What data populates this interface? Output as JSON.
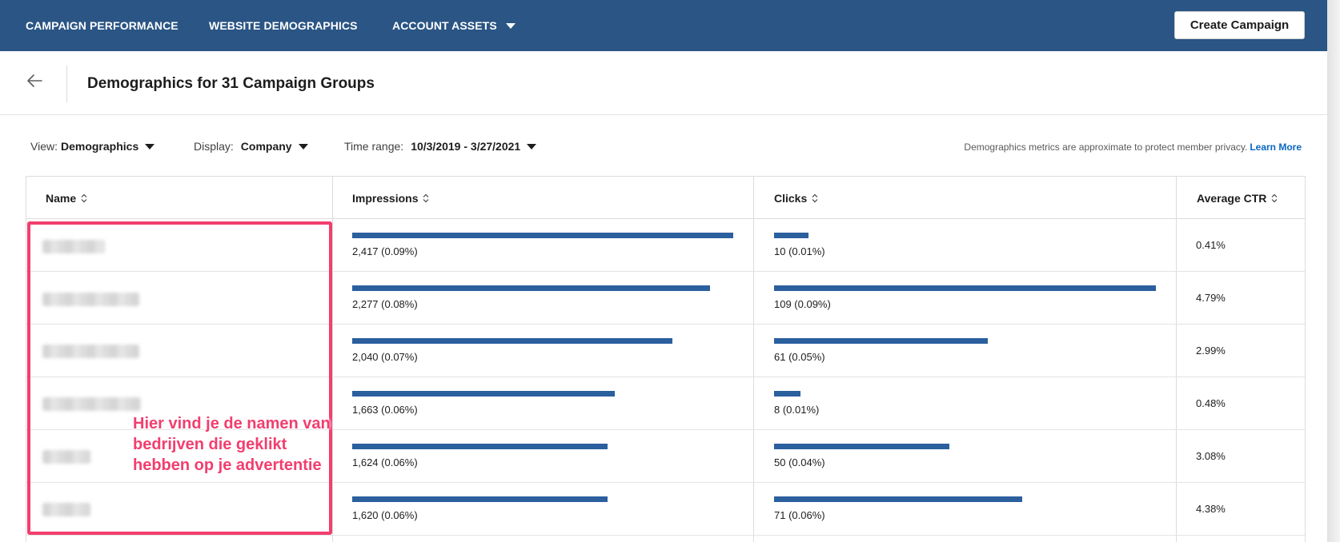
{
  "topnav": {
    "items": [
      {
        "label": "CAMPAIGN PERFORMANCE"
      },
      {
        "label": "WEBSITE DEMOGRAPHICS"
      },
      {
        "label": "ACCOUNT ASSETS",
        "has_dropdown": true
      }
    ],
    "create_button": "Create Campaign"
  },
  "header": {
    "title": "Demographics for 31 Campaign Groups"
  },
  "filters": {
    "view": {
      "label": "View:",
      "value": "Demographics"
    },
    "display": {
      "label": "Display:",
      "value": "Company"
    },
    "time_range": {
      "label": "Time range:",
      "value": "10/3/2019 - 3/27/2021"
    }
  },
  "privacy": {
    "text": "Demographics metrics are approximate to protect member privacy.",
    "link": "Learn More"
  },
  "table": {
    "columns": [
      "Name",
      "Impressions",
      "Clicks",
      "Average CTR"
    ],
    "rows": [
      {
        "name": "",
        "impressions": "2,417 (0.09%)",
        "impressions_share": 1.0,
        "clicks": "10 (0.01%)",
        "clicks_share": 0.09,
        "ctr": "0.41%"
      },
      {
        "name": "",
        "impressions": "2,277 (0.08%)",
        "impressions_share": 0.94,
        "clicks": "109 (0.09%)",
        "clicks_share": 1.0,
        "ctr": "4.79%"
      },
      {
        "name": "",
        "impressions": "2,040 (0.07%)",
        "impressions_share": 0.84,
        "clicks": "61 (0.05%)",
        "clicks_share": 0.56,
        "ctr": "2.99%"
      },
      {
        "name": "",
        "impressions": "1,663 (0.06%)",
        "impressions_share": 0.69,
        "clicks": "8 (0.01%)",
        "clicks_share": 0.07,
        "ctr": "0.48%"
      },
      {
        "name": "",
        "impressions": "1,624 (0.06%)",
        "impressions_share": 0.67,
        "clicks": "50 (0.04%)",
        "clicks_share": 0.46,
        "ctr": "3.08%"
      },
      {
        "name": "",
        "impressions": "1,620 (0.06%)",
        "impressions_share": 0.67,
        "clicks": "71 (0.06%)",
        "clicks_share": 0.65,
        "ctr": "4.38%"
      }
    ]
  },
  "annotation": {
    "text": "Hier vind je de namen van bedrijven die geklikt hebben op je advertentie"
  },
  "colors": {
    "nav": "#2a5584",
    "bar": "#2b5f9e",
    "annotation": "#f23e6e",
    "link": "#0a66c2"
  }
}
